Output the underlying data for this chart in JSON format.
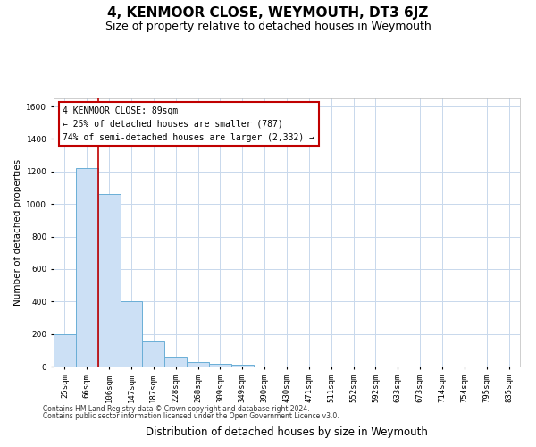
{
  "title": "4, KENMOOR CLOSE, WEYMOUTH, DT3 6JZ",
  "subtitle": "Size of property relative to detached houses in Weymouth",
  "xlabel": "Distribution of detached houses by size in Weymouth",
  "ylabel": "Number of detached properties",
  "categories": [
    "25sqm",
    "66sqm",
    "106sqm",
    "147sqm",
    "187sqm",
    "228sqm",
    "268sqm",
    "309sqm",
    "349sqm",
    "390sqm",
    "430sqm",
    "471sqm",
    "511sqm",
    "552sqm",
    "592sqm",
    "633sqm",
    "673sqm",
    "714sqm",
    "754sqm",
    "795sqm",
    "835sqm"
  ],
  "values": [
    200,
    1220,
    1060,
    400,
    160,
    60,
    25,
    15,
    10,
    0,
    0,
    0,
    0,
    0,
    0,
    0,
    0,
    0,
    0,
    0,
    0
  ],
  "bar_color": "#cce0f5",
  "bar_edge_color": "#6aaed6",
  "vline_x": 1.5,
  "vline_color": "#c00000",
  "annotation_line1": "4 KENMOOR CLOSE: 89sqm",
  "annotation_line2": "← 25% of detached houses are smaller (787)",
  "annotation_line3": "74% of semi-detached houses are larger (2,332) →",
  "annotation_box_color": "#ffffff",
  "annotation_box_edge": "#c00000",
  "ylim": [
    0,
    1650
  ],
  "yticks": [
    0,
    200,
    400,
    600,
    800,
    1000,
    1200,
    1400,
    1600
  ],
  "footer_line1": "Contains HM Land Registry data © Crown copyright and database right 2024.",
  "footer_line2": "Contains public sector information licensed under the Open Government Licence v3.0.",
  "bg_color": "#ffffff",
  "grid_color": "#c8d8ec",
  "title_fontsize": 11,
  "subtitle_fontsize": 9,
  "xlabel_fontsize": 8.5,
  "ylabel_fontsize": 7.5,
  "annotation_fontsize": 7,
  "tick_fontsize": 6.5,
  "footer_fontsize": 5.5
}
